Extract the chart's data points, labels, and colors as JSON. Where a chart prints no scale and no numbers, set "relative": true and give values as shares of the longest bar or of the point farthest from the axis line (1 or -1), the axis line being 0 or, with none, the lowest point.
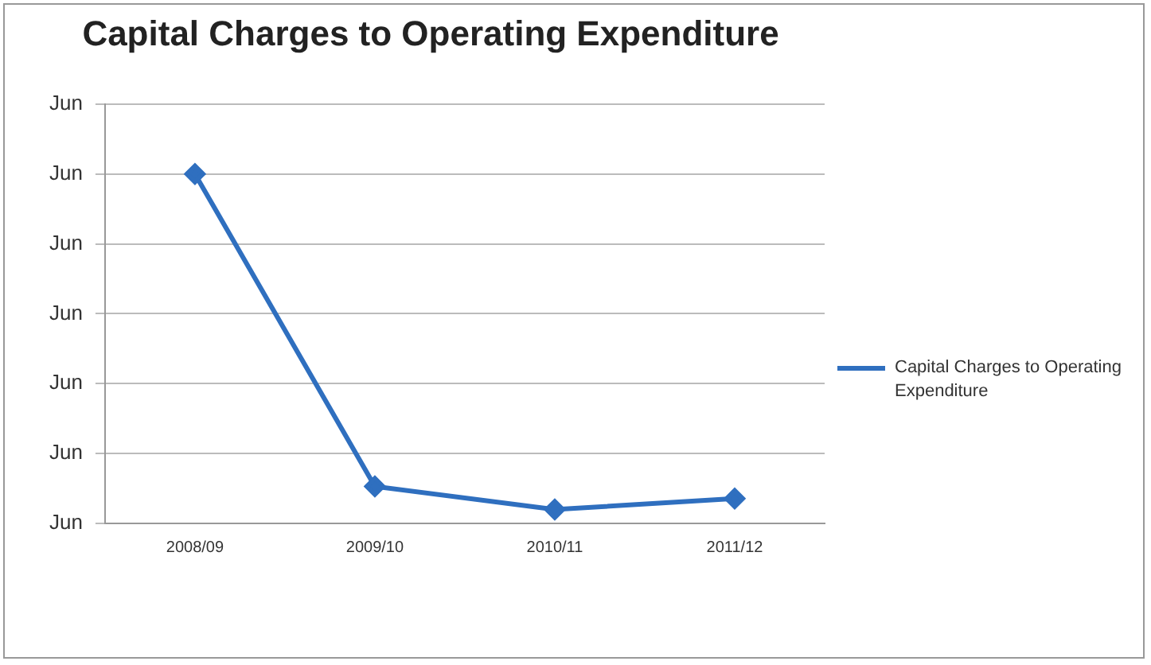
{
  "chart_data": {
    "type": "line",
    "title": "Capital Charges to Operating Expenditure",
    "categories": [
      "2008/09",
      "2009/10",
      "2010/11",
      "2011/12"
    ],
    "series": [
      {
        "name": "Capital Charges to Operating Expenditure",
        "color": "#2f6fbf",
        "values": [
          1,
          0.106,
          0.04,
          0.071
        ]
      }
    ],
    "relative": true,
    "annotations": [
      "Jun",
      "Jun",
      "Jun",
      "Jun",
      "Jun",
      "Jun",
      "Jun"
    ],
    "grid": "y",
    "legend": "right",
    "marker": "diamond",
    "line_style": "solid"
  }
}
